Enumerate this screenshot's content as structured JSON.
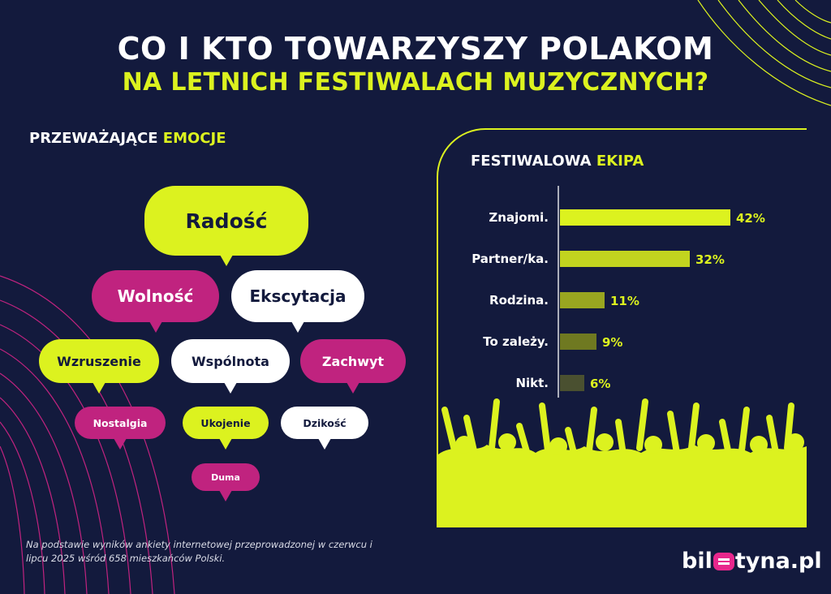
{
  "title": {
    "line1": "CO I KTO TOWARZYSZY POLAKOM",
    "line2": "NA LETNICH FESTIWALACH MUZYCZNYCH?"
  },
  "emotions": {
    "heading_a": "PRZEWAŻAJĄCE",
    "heading_b": "EMOCJE",
    "items": [
      "Radość",
      "Wolność",
      "Ekscytacja",
      "Wzruszenie",
      "Wspólnota",
      "Zachwyt",
      "Nostalgia",
      "Ukojenie",
      "Dzikość",
      "Duma"
    ]
  },
  "colors": {
    "background": "#131a3d",
    "accent_lime": "#dcf21f",
    "accent_magenta": "#c0237f",
    "white": "#ffffff"
  },
  "chart_data": {
    "type": "bar",
    "orientation": "horizontal",
    "title_a": "FESTIWALOWA",
    "title_b": "EKIPA",
    "categories": [
      "Znajomi.",
      "Partner/ka.",
      "Rodzina.",
      "To zależy.",
      "Nikt."
    ],
    "values": [
      42,
      32,
      11,
      9,
      6
    ],
    "value_labels": [
      "42%",
      "32%",
      "11%",
      "9%",
      "6%"
    ],
    "bar_colors": [
      "#dcf21f",
      "#c2d41f",
      "#99a620",
      "#6f7921",
      "#4a5030"
    ],
    "xlim": [
      0,
      42
    ],
    "grid": false,
    "legend": "none"
  },
  "footnote": "Na podstawie wyników ankiety internetowej przeprowadzonej w czerwcu i lipcu 2025 wśród 658 mieszkańców Polski.",
  "logo": {
    "part1": "bil",
    "part2": "tyna.pl"
  }
}
